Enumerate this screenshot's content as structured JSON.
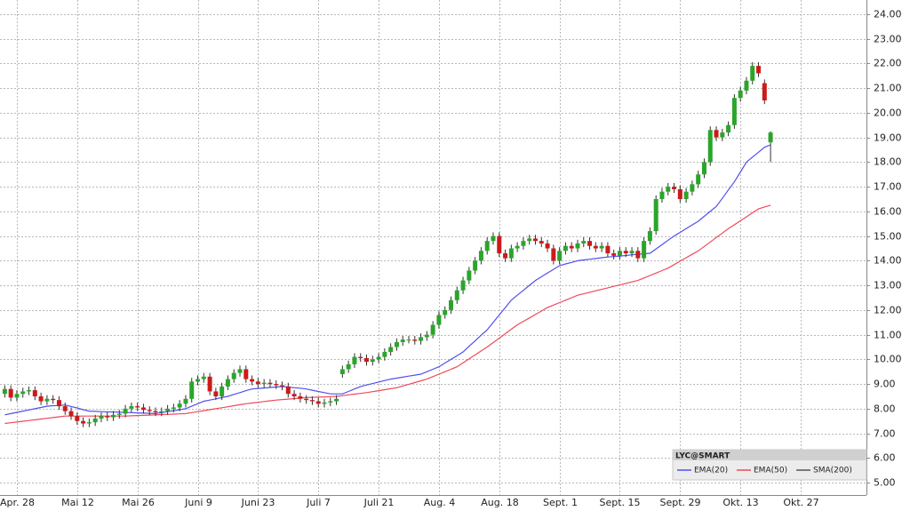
{
  "chart_data": {
    "type": "candlestick",
    "legend_title": "LYC@SMART",
    "legend": "bottom-right",
    "grid": true,
    "ylim": [
      4.5,
      24.5
    ],
    "yticks": [
      {
        "value": 5,
        "label": "5.00"
      },
      {
        "value": 6,
        "label": "6.00"
      },
      {
        "value": 7,
        "label": "7.00"
      },
      {
        "value": 8,
        "label": "8.00"
      },
      {
        "value": 9,
        "label": "9.00"
      },
      {
        "value": 10,
        "label": "10.00"
      },
      {
        "value": 11,
        "label": "11.00"
      },
      {
        "value": 12,
        "label": "12.00"
      },
      {
        "value": 13,
        "label": "13.00"
      },
      {
        "value": 14,
        "label": "14.00"
      },
      {
        "value": 15,
        "label": "15.00"
      },
      {
        "value": 16,
        "label": "16.00"
      },
      {
        "value": 17,
        "label": "17.00"
      },
      {
        "value": 18,
        "label": "18.00"
      },
      {
        "value": 19,
        "label": "19.00"
      },
      {
        "value": 20,
        "label": "20.00"
      },
      {
        "value": 21,
        "label": "21.00"
      },
      {
        "value": 22,
        "label": "22.00"
      },
      {
        "value": 23,
        "label": "23.00"
      },
      {
        "value": 24,
        "label": "24.00"
      }
    ],
    "categories": [
      null,
      null,
      "Apr. 28",
      null,
      null,
      null,
      null,
      null,
      null,
      null,
      null,
      null,
      "Mai 12",
      null,
      null,
      null,
      null,
      null,
      null,
      null,
      null,
      null,
      "Mai 26",
      null,
      null,
      null,
      null,
      null,
      null,
      null,
      null,
      null,
      "Juni 9",
      null,
      null,
      null,
      null,
      null,
      null,
      null,
      null,
      null,
      "Juni 23",
      null,
      null,
      null,
      null,
      null,
      null,
      null,
      null,
      null,
      "Juli 7",
      null,
      null,
      null,
      null,
      null,
      null,
      null,
      null,
      null,
      "Juli 21",
      null,
      null,
      null,
      null,
      null,
      null,
      null,
      null,
      null,
      "Aug. 4",
      null,
      null,
      null,
      null,
      null,
      null,
      null,
      null,
      null,
      "Aug. 18",
      null,
      null,
      null,
      null,
      null,
      null,
      null,
      null,
      null,
      "Sept. 1",
      null,
      null,
      null,
      null,
      null,
      null,
      null,
      null,
      null,
      "Sept. 15",
      null,
      null,
      null,
      null,
      null,
      null,
      null,
      null,
      null,
      "Sept. 29",
      null,
      null,
      null,
      null,
      null,
      null,
      null,
      null,
      null,
      "Okt. 13",
      null,
      null,
      null,
      null,
      null,
      null,
      null,
      null,
      null,
      "Okt. 27"
    ],
    "candles": {
      "up_color": "#2aa52a",
      "down_color": "#cc1a1a",
      "open": [
        8.6,
        8.8,
        8.45,
        8.6,
        8.7,
        8.75,
        8.5,
        8.3,
        8.4,
        8.35,
        8.1,
        7.9,
        7.7,
        7.5,
        7.4,
        7.45,
        7.6,
        7.7,
        7.65,
        7.75,
        7.8,
        8.0,
        8.1,
        8.05,
        7.95,
        7.9,
        7.85,
        7.9,
        8.0,
        8.05,
        8.2,
        8.4,
        9.1,
        9.2,
        9.3,
        8.7,
        8.5,
        8.9,
        9.2,
        9.45,
        9.6,
        9.2,
        9.1,
        9.0,
        9.05,
        9.0,
        8.95,
        8.9,
        8.6,
        8.5,
        8.4,
        8.35,
        8.3,
        8.2,
        8.25,
        8.3,
        9.4,
        9.6,
        9.8,
        10.1,
        10.05,
        9.9,
        10.0,
        10.1,
        10.3,
        10.5,
        10.7,
        10.8,
        10.8,
        10.75,
        10.9,
        11.0,
        11.4,
        11.8,
        12.0,
        12.4,
        12.8,
        13.2,
        13.6,
        14.0,
        14.4,
        14.8,
        15.0,
        14.3,
        14.1,
        14.5,
        14.6,
        14.8,
        14.9,
        14.8,
        14.7,
        14.5,
        14.0,
        14.4,
        14.6,
        14.5,
        14.7,
        14.8,
        14.6,
        14.5,
        14.6,
        14.3,
        14.2,
        14.4,
        14.3,
        14.4,
        14.1,
        14.8,
        15.2,
        16.5,
        16.8,
        17.0,
        16.9,
        16.5,
        16.8,
        17.1,
        17.5,
        18.0,
        19.3,
        19.0,
        19.2,
        19.5,
        20.6,
        20.9,
        21.3,
        21.9,
        21.2,
        18.8,
        null,
        null,
        null,
        null,
        null
      ],
      "high": [
        8.95,
        8.95,
        8.75,
        8.85,
        8.9,
        8.9,
        8.65,
        8.55,
        8.55,
        8.5,
        8.25,
        8.05,
        7.85,
        7.65,
        7.6,
        7.75,
        7.85,
        7.85,
        7.9,
        7.95,
        8.15,
        8.25,
        8.25,
        8.2,
        8.1,
        8.05,
        8.05,
        8.15,
        8.2,
        8.35,
        8.55,
        9.25,
        9.35,
        9.45,
        9.45,
        8.85,
        9.05,
        9.35,
        9.6,
        9.75,
        9.75,
        9.35,
        9.25,
        9.2,
        9.2,
        9.15,
        9.1,
        9.05,
        8.75,
        8.65,
        8.55,
        8.5,
        8.45,
        8.4,
        8.45,
        8.55,
        9.75,
        9.95,
        10.25,
        10.25,
        10.2,
        10.15,
        10.25,
        10.45,
        10.65,
        10.85,
        10.95,
        10.95,
        10.95,
        11.05,
        11.15,
        11.55,
        11.95,
        12.15,
        12.55,
        12.95,
        13.35,
        13.75,
        14.15,
        14.55,
        14.95,
        15.15,
        15.15,
        14.45,
        14.65,
        14.75,
        14.95,
        15.05,
        15.05,
        14.95,
        14.85,
        14.65,
        14.55,
        14.75,
        14.75,
        14.85,
        14.95,
        14.95,
        14.75,
        14.75,
        14.75,
        14.45,
        14.55,
        14.55,
        14.55,
        14.55,
        14.95,
        15.35,
        16.65,
        16.95,
        17.15,
        17.15,
        17.05,
        16.95,
        17.25,
        17.65,
        18.15,
        19.45,
        19.45,
        19.35,
        19.65,
        20.75,
        21.05,
        21.45,
        22.05,
        22.05,
        21.35,
        19.25,
        null,
        null,
        null,
        null,
        null
      ],
      "low": [
        8.45,
        8.3,
        8.3,
        8.45,
        8.55,
        8.35,
        8.15,
        8.15,
        8.2,
        7.95,
        7.75,
        7.55,
        7.35,
        7.25,
        7.25,
        7.3,
        7.45,
        7.5,
        7.5,
        7.6,
        7.65,
        7.85,
        7.9,
        7.8,
        7.75,
        7.7,
        7.7,
        7.75,
        7.85,
        7.9,
        8.05,
        8.25,
        8.95,
        9.05,
        8.55,
        8.35,
        8.35,
        8.75,
        9.05,
        9.3,
        9.05,
        8.95,
        8.85,
        8.85,
        8.85,
        8.8,
        8.75,
        8.45,
        8.35,
        8.25,
        8.2,
        8.15,
        8.05,
        8.05,
        8.1,
        8.15,
        9.25,
        9.45,
        9.65,
        9.9,
        9.75,
        9.75,
        9.85,
        9.95,
        10.15,
        10.35,
        10.55,
        10.65,
        10.6,
        10.6,
        10.75,
        10.85,
        11.25,
        11.65,
        11.85,
        12.25,
        12.65,
        13.05,
        13.45,
        13.85,
        14.25,
        14.65,
        14.15,
        13.95,
        13.95,
        14.35,
        14.45,
        14.65,
        14.65,
        14.55,
        14.35,
        13.85,
        13.85,
        14.25,
        14.35,
        14.35,
        14.55,
        14.45,
        14.35,
        14.35,
        14.15,
        14.05,
        14.05,
        14.15,
        14.15,
        13.95,
        13.95,
        14.65,
        15.05,
        16.35,
        16.65,
        16.75,
        16.35,
        16.35,
        16.65,
        16.95,
        17.35,
        17.85,
        18.85,
        18.85,
        19.05,
        19.35,
        20.45,
        20.75,
        21.15,
        21.45,
        20.35,
        18.0,
        null,
        null,
        null,
        null,
        null
      ],
      "close": [
        8.8,
        8.45,
        8.6,
        8.7,
        8.75,
        8.5,
        8.3,
        8.4,
        8.35,
        8.1,
        7.9,
        7.7,
        7.5,
        7.4,
        7.45,
        7.6,
        7.7,
        7.65,
        7.75,
        7.8,
        8.0,
        8.1,
        8.05,
        7.95,
        7.9,
        7.85,
        7.9,
        8.0,
        8.05,
        8.2,
        8.4,
        9.1,
        9.2,
        9.3,
        8.7,
        8.5,
        8.9,
        9.2,
        9.45,
        9.6,
        9.2,
        9.1,
        9.0,
        9.05,
        9.0,
        8.95,
        8.9,
        8.6,
        8.5,
        8.4,
        8.35,
        8.3,
        8.2,
        8.25,
        8.3,
        8.4,
        9.6,
        9.8,
        10.1,
        10.05,
        9.9,
        10.0,
        10.1,
        10.3,
        10.5,
        10.7,
        10.8,
        10.8,
        10.75,
        10.9,
        11.0,
        11.4,
        11.8,
        12.0,
        12.4,
        12.8,
        13.2,
        13.6,
        14.0,
        14.4,
        14.8,
        15.0,
        14.3,
        14.1,
        14.5,
        14.6,
        14.8,
        14.9,
        14.8,
        14.7,
        14.5,
        14.0,
        14.4,
        14.6,
        14.5,
        14.7,
        14.8,
        14.6,
        14.5,
        14.6,
        14.3,
        14.2,
        14.4,
        14.3,
        14.4,
        14.1,
        14.8,
        15.2,
        16.5,
        16.8,
        17.0,
        16.9,
        16.5,
        16.8,
        17.1,
        17.5,
        18.0,
        19.3,
        19.0,
        19.2,
        19.5,
        20.6,
        20.9,
        21.3,
        21.9,
        21.6,
        20.5,
        19.2,
        null,
        null,
        null,
        null,
        null
      ]
    },
    "series": [
      {
        "name": "EMA(20)",
        "color": "#5050ee",
        "values": [
          7.75,
          7.8,
          7.85,
          7.9,
          7.95,
          8.0,
          8.05,
          8.1,
          8.12,
          8.13,
          8.15,
          8.09,
          8.03,
          7.96,
          7.9,
          7.89,
          7.88,
          7.87,
          7.87,
          7.86,
          7.85,
          7.84,
          7.83,
          7.82,
          7.81,
          7.8,
          7.84,
          7.88,
          7.92,
          7.96,
          8.0,
          8.1,
          8.2,
          8.3,
          8.35,
          8.4,
          8.45,
          8.5,
          8.58,
          8.65,
          8.73,
          8.8,
          8.82,
          8.84,
          8.86,
          8.88,
          8.9,
          8.88,
          8.85,
          8.83,
          8.8,
          8.75,
          8.7,
          8.65,
          8.6,
          8.6,
          8.6,
          8.7,
          8.8,
          8.9,
          8.96,
          9.02,
          9.08,
          9.14,
          9.2,
          9.24,
          9.28,
          9.32,
          9.36,
          9.4,
          9.5,
          9.6,
          9.7,
          9.85,
          10.0,
          10.15,
          10.3,
          10.53,
          10.75,
          10.98,
          11.2,
          11.5,
          11.8,
          12.1,
          12.4,
          12.6,
          12.8,
          13.0,
          13.2,
          13.35,
          13.5,
          13.65,
          13.8,
          13.87,
          13.93,
          14.0,
          14.03,
          14.06,
          14.09,
          14.12,
          14.15,
          14.17,
          14.19,
          14.21,
          14.24,
          14.26,
          14.28,
          14.3,
          14.48,
          14.65,
          14.83,
          15.0,
          15.15,
          15.3,
          15.45,
          15.6,
          15.8,
          16.0,
          16.2,
          16.53,
          16.87,
          17.2,
          17.6,
          18.0,
          18.2,
          18.4,
          18.6,
          18.7,
          null,
          null,
          null,
          null,
          null
        ]
      },
      {
        "name": "EMA(50)",
        "color": "#ee4a5a",
        "values": [
          7.4,
          7.43,
          7.46,
          7.49,
          7.52,
          7.55,
          7.58,
          7.61,
          7.64,
          7.67,
          7.7,
          7.7,
          7.7,
          7.7,
          7.7,
          7.7,
          7.7,
          7.7,
          7.7,
          7.7,
          7.7,
          7.71,
          7.72,
          7.73,
          7.74,
          7.75,
          7.76,
          7.77,
          7.78,
          7.79,
          7.8,
          7.84,
          7.88,
          7.92,
          7.96,
          8.0,
          8.04,
          8.08,
          8.12,
          8.16,
          8.2,
          8.23,
          8.26,
          8.29,
          8.32,
          8.35,
          8.37,
          8.39,
          8.41,
          8.43,
          8.45,
          8.46,
          8.47,
          8.48,
          8.49,
          8.5,
          8.53,
          8.56,
          8.59,
          8.62,
          8.65,
          8.69,
          8.73,
          8.77,
          8.81,
          8.85,
          8.92,
          8.99,
          9.06,
          9.13,
          9.2,
          9.3,
          9.4,
          9.5,
          9.6,
          9.7,
          9.86,
          10.02,
          10.18,
          10.34,
          10.5,
          10.68,
          10.86,
          11.04,
          11.22,
          11.4,
          11.54,
          11.68,
          11.82,
          11.96,
          12.1,
          12.2,
          12.3,
          12.4,
          12.5,
          12.6,
          12.66,
          12.72,
          12.78,
          12.84,
          12.9,
          12.96,
          13.02,
          13.08,
          13.14,
          13.2,
          13.3,
          13.4,
          13.5,
          13.6,
          13.7,
          13.84,
          13.98,
          14.12,
          14.26,
          14.4,
          14.58,
          14.76,
          14.94,
          15.12,
          15.3,
          15.46,
          15.62,
          15.78,
          15.94,
          16.1,
          16.18,
          16.25,
          null,
          null,
          null,
          null,
          null
        ]
      },
      {
        "name": "SMA(200)",
        "color": "#555555"
      }
    ]
  }
}
